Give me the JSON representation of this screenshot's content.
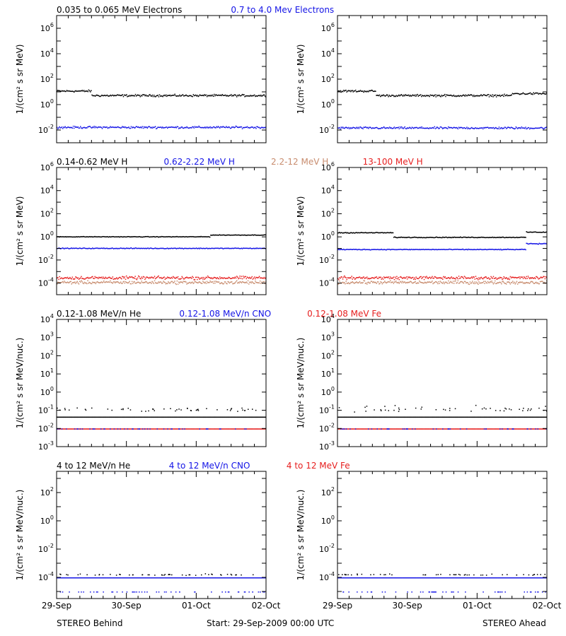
{
  "footer": {
    "left": "STEREO Behind",
    "center": "Start: 29-Sep-2009 00:00 UTC",
    "right": "STEREO Ahead"
  },
  "x_tick_labels": [
    "29-Sep",
    "30-Sep",
    "01-Oct",
    "02-Oct"
  ],
  "colors": {
    "black": "#000000",
    "blue": "#1414e6",
    "tan": "#c88c6e",
    "red": "#e61e1e"
  },
  "chart_data": [
    {
      "type": "scatter",
      "row": 1,
      "legend": [
        {
          "text": "0.035 to 0.065 MeV Electrons",
          "color": "#000000"
        },
        {
          "text": "0.7 to 4.0 Mev Electrons",
          "color": "#1414e6"
        }
      ],
      "ylabel": "1/(cm² s sr MeV)",
      "yscale": "log",
      "ylim_exp": [
        -3,
        7
      ],
      "y_tick_exponents": [
        -2,
        0,
        2,
        4,
        6
      ],
      "xlim_days": [
        0,
        3
      ],
      "panels": [
        {
          "spacecraft": "STEREO Behind",
          "series": [
            {
              "color": "black",
              "segments": [
                [
                  0,
                  0.5,
                  1.1
                ],
                [
                  0.5,
                  3,
                  0.75
                ]
              ],
              "scatter": 0.12
            },
            {
              "color": "blue",
              "segments": [
                [
                  0,
                  3,
                  -1.75
                ]
              ],
              "scatter": 0.12
            }
          ]
        },
        {
          "spacecraft": "STEREO Ahead",
          "series": [
            {
              "color": "black",
              "segments": [
                [
                  0,
                  0.55,
                  1.1
                ],
                [
                  0.55,
                  2.5,
                  0.75
                ],
                [
                  2.5,
                  3,
                  0.9
                ]
              ],
              "scatter": 0.12
            },
            {
              "color": "blue",
              "segments": [
                [
                  0,
                  3,
                  -1.8
                ]
              ],
              "scatter": 0.12
            }
          ]
        }
      ]
    },
    {
      "type": "scatter",
      "row": 2,
      "legend": [
        {
          "text": "0.14-0.62 MeV H",
          "color": "#000000"
        },
        {
          "text": "0.62-2.22 MeV H",
          "color": "#1414e6"
        },
        {
          "text": "2.2-12 MeV H",
          "color": "#c88c6e"
        },
        {
          "text": "13-100 MeV H",
          "color": "#e61e1e"
        }
      ],
      "ylabel": "1/(cm² s sr MeV)",
      "yscale": "log",
      "ylim_exp": [
        -5,
        6
      ],
      "y_tick_exponents": [
        -4,
        -2,
        0,
        2,
        4,
        6
      ],
      "xlim_days": [
        0,
        3
      ],
      "panels": [
        {
          "spacecraft": "STEREO Behind",
          "series": [
            {
              "color": "black",
              "segments": [
                [
                  0,
                  2.2,
                  0.05
                ],
                [
                  2.2,
                  3,
                  0.2
                ]
              ],
              "scatter": 0.04
            },
            {
              "color": "blue",
              "segments": [
                [
                  0,
                  3,
                  -0.95
                ]
              ],
              "scatter": 0.05
            },
            {
              "color": "tan",
              "segments": [
                [
                  0,
                  3,
                  -3.9
                ]
              ],
              "scatter": 0.2
            },
            {
              "color": "red",
              "segments": [
                [
                  0,
                  3,
                  -3.5
                ]
              ],
              "scatter": 0.2
            }
          ]
        },
        {
          "spacecraft": "STEREO Ahead",
          "series": [
            {
              "color": "black",
              "segments": [
                [
                  0,
                  0.8,
                  0.4
                ],
                [
                  0.8,
                  2.7,
                  0.0
                ],
                [
                  2.7,
                  3,
                  0.45
                ]
              ],
              "scatter": 0.05
            },
            {
              "color": "blue",
              "segments": [
                [
                  0,
                  2.7,
                  -1.05
                ],
                [
                  2.7,
                  3,
                  -0.55
                ]
              ],
              "scatter": 0.05
            },
            {
              "color": "tan",
              "segments": [
                [
                  0,
                  3,
                  -3.9
                ]
              ],
              "scatter": 0.2
            },
            {
              "color": "red",
              "segments": [
                [
                  0,
                  3,
                  -3.5
                ]
              ],
              "scatter": 0.2
            }
          ]
        }
      ]
    },
    {
      "type": "scatter",
      "row": 3,
      "legend": [
        {
          "text": "0.12-1.08 MeV/n He",
          "color": "#000000"
        },
        {
          "text": "0.12-1.08 MeV/n CNO",
          "color": "#1414e6"
        },
        {
          "text": "0.12-1.08 MeV Fe",
          "color": "#e61e1e"
        }
      ],
      "ylabel": "1/(cm² s sr MeV/nuc.)",
      "yscale": "log",
      "ylim_exp": [
        -3,
        4
      ],
      "y_tick_exponents": [
        -3,
        -2,
        -1,
        0,
        1,
        2,
        3,
        4
      ],
      "xlim_days": [
        0,
        3
      ],
      "panels": [
        {
          "spacecraft": "STEREO Behind",
          "series": [
            {
              "color": "black",
              "segments": [
                [
                  0,
                  3,
                  -1.35
                ]
              ],
              "scatter": 0.0
            },
            {
              "color": "black",
              "segments": [
                [
                  0,
                  3,
                  -1.0
                ]
              ],
              "scatter": 0.1,
              "sparse": true
            },
            {
              "color": "red",
              "segments": [
                [
                  0,
                  3,
                  -2.0
                ]
              ],
              "scatter": 0.0
            },
            {
              "color": "blue",
              "segments": [
                [
                  0,
                  3,
                  -2.0
                ]
              ],
              "scatter": 0.0,
              "sparse": true
            }
          ]
        },
        {
          "spacecraft": "STEREO Ahead",
          "series": [
            {
              "color": "black",
              "segments": [
                [
                  0,
                  3,
                  -1.35
                ]
              ],
              "scatter": 0.0
            },
            {
              "color": "black",
              "segments": [
                [
                  0,
                  3,
                  -1.0
                ]
              ],
              "scatter": 0.15,
              "sparse": true
            },
            {
              "color": "red",
              "segments": [
                [
                  0,
                  3,
                  -2.0
                ]
              ],
              "scatter": 0.0
            },
            {
              "color": "blue",
              "segments": [
                [
                  0,
                  3,
                  -2.0
                ]
              ],
              "scatter": 0.0,
              "sparse": true
            }
          ]
        }
      ]
    },
    {
      "type": "scatter",
      "row": 4,
      "legend": [
        {
          "text": "4 to 12 MeV/n He",
          "color": "#000000"
        },
        {
          "text": "4 to 12 MeV/n CNO",
          "color": "#1414e6"
        },
        {
          "text": "4 to 12 MeV Fe",
          "color": "#e61e1e"
        }
      ],
      "ylabel": "1/(cm² s sr MeV/nuc.)",
      "yscale": "log",
      "ylim_exp": [
        -5.5,
        3.5
      ],
      "y_tick_exponents": [
        -4,
        -2,
        0,
        2
      ],
      "xlim_days": [
        0,
        3
      ],
      "panels": [
        {
          "spacecraft": "STEREO Behind",
          "series": [
            {
              "color": "blue",
              "segments": [
                [
                  0,
                  3,
                  -4.0
                ]
              ],
              "scatter": 0.0
            },
            {
              "color": "black",
              "segments": [
                [
                  0,
                  3,
                  -3.8
                ]
              ],
              "scatter": 0.05,
              "sparse": true
            },
            {
              "color": "blue",
              "segments": [
                [
                  0,
                  3,
                  -5.0
                ]
              ],
              "scatter": 0.0,
              "sparse": true
            }
          ]
        },
        {
          "spacecraft": "STEREO Ahead",
          "series": [
            {
              "color": "blue",
              "segments": [
                [
                  0,
                  3,
                  -4.0
                ]
              ],
              "scatter": 0.0
            },
            {
              "color": "black",
              "segments": [
                [
                  0,
                  3,
                  -3.8
                ]
              ],
              "scatter": 0.05,
              "sparse": true
            },
            {
              "color": "blue",
              "segments": [
                [
                  0,
                  3,
                  -5.0
                ]
              ],
              "scatter": 0.0,
              "sparse": true
            }
          ]
        }
      ]
    }
  ]
}
